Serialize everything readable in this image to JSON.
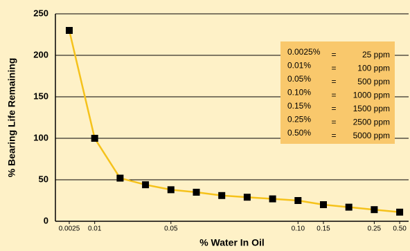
{
  "chart_data": {
    "type": "line",
    "x_label": "% Water In Oil",
    "y_label": "% Bearing Life Remaining",
    "categories": [
      "0.0025",
      "0.01",
      null,
      null,
      "0.05",
      null,
      null,
      null,
      null,
      "0.10",
      "0.15",
      null,
      "0.25",
      "0.50"
    ],
    "series": [
      {
        "color": "#f5c21b",
        "values": [
          230,
          100,
          52,
          44,
          38,
          35,
          31,
          29,
          27,
          25,
          20,
          17,
          14,
          11
        ]
      }
    ],
    "ylim": [
      0,
      250
    ],
    "yticks": [
      0,
      50,
      100,
      150,
      200,
      250
    ],
    "grid": true,
    "legend_table": {
      "color": "#f9c86c",
      "rows": [
        [
          "0.0025%",
          "=",
          "25 ppm"
        ],
        [
          "0.01%",
          "=",
          "100 ppm"
        ],
        [
          "0.05%",
          "=",
          "500 ppm"
        ],
        [
          "0.10%",
          "=",
          "1000 ppm"
        ],
        [
          "0.15%",
          "=",
          "1500 ppm"
        ],
        [
          "0.25%",
          "=",
          "2500 ppm"
        ],
        [
          "0.50%",
          "=",
          "5000 ppm"
        ]
      ]
    }
  }
}
